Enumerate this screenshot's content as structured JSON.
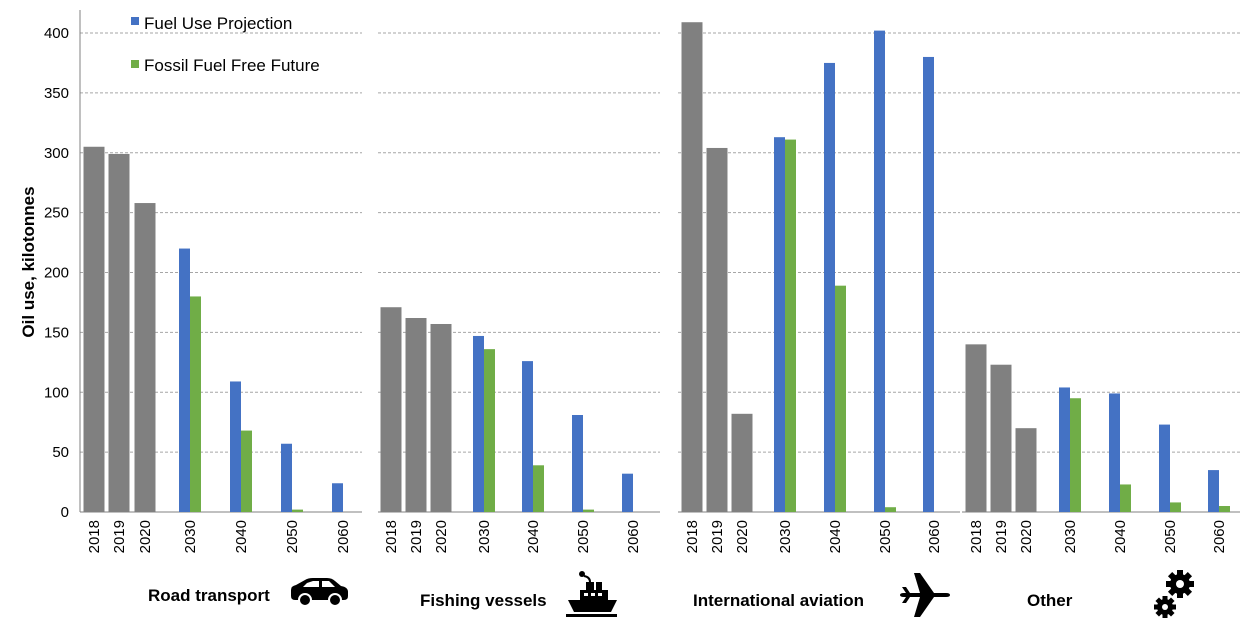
{
  "chart_data": {
    "type": "bar",
    "ylabel": "Oil use, kilotonnes",
    "ylim": [
      0,
      410
    ],
    "yticks": [
      0,
      50,
      100,
      150,
      200,
      250,
      300,
      350,
      400
    ],
    "grid": true,
    "legend_position": "top-left",
    "legend": [
      {
        "name": "Fuel Use Projection",
        "color": "#4472C4"
      },
      {
        "name": "Fossil Fuel Free Future",
        "color": "#70AD47"
      }
    ],
    "historical_color": "#808080",
    "x_categories": [
      "2018",
      "2019",
      "2020",
      "2030",
      "2040",
      "2050",
      "2060"
    ],
    "panels": [
      {
        "label": "Road transport",
        "icon": "car-icon",
        "historical": [
          {
            "x": "2018",
            "value": 305
          },
          {
            "x": "2019",
            "value": 299
          },
          {
            "x": "2020",
            "value": 258
          }
        ],
        "projection": [
          {
            "x": "2030",
            "value": 220
          },
          {
            "x": "2040",
            "value": 109
          },
          {
            "x": "2050",
            "value": 57
          },
          {
            "x": "2060",
            "value": 24
          }
        ],
        "fossil_free": [
          {
            "x": "2030",
            "value": 180
          },
          {
            "x": "2040",
            "value": 68
          },
          {
            "x": "2050",
            "value": 2
          },
          {
            "x": "2060",
            "value": 0
          }
        ]
      },
      {
        "label": "Fishing vessels",
        "icon": "ship-icon",
        "historical": [
          {
            "x": "2018",
            "value": 171
          },
          {
            "x": "2019",
            "value": 162
          },
          {
            "x": "2020",
            "value": 157
          }
        ],
        "projection": [
          {
            "x": "2030",
            "value": 147
          },
          {
            "x": "2040",
            "value": 126
          },
          {
            "x": "2050",
            "value": 81
          },
          {
            "x": "2060",
            "value": 32
          }
        ],
        "fossil_free": [
          {
            "x": "2030",
            "value": 136
          },
          {
            "x": "2040",
            "value": 39
          },
          {
            "x": "2050",
            "value": 2
          },
          {
            "x": "2060",
            "value": 0
          }
        ]
      },
      {
        "label": "International aviation",
        "icon": "airplane-icon",
        "historical": [
          {
            "x": "2018",
            "value": 409
          },
          {
            "x": "2019",
            "value": 304
          },
          {
            "x": "2020",
            "value": 82
          }
        ],
        "projection": [
          {
            "x": "2030",
            "value": 313
          },
          {
            "x": "2040",
            "value": 375
          },
          {
            "x": "2050",
            "value": 402
          },
          {
            "x": "2060",
            "value": 380
          }
        ],
        "fossil_free": [
          {
            "x": "2030",
            "value": 311
          },
          {
            "x": "2040",
            "value": 189
          },
          {
            "x": "2050",
            "value": 4
          },
          {
            "x": "2060",
            "value": 0
          }
        ]
      },
      {
        "label": "Other",
        "icon": "gears-icon",
        "historical": [
          {
            "x": "2018",
            "value": 140
          },
          {
            "x": "2019",
            "value": 123
          },
          {
            "x": "2020",
            "value": 70
          }
        ],
        "projection": [
          {
            "x": "2030",
            "value": 104
          },
          {
            "x": "2040",
            "value": 99
          },
          {
            "x": "2050",
            "value": 73
          },
          {
            "x": "2060",
            "value": 35
          }
        ],
        "fossil_free": [
          {
            "x": "2030",
            "value": 95
          },
          {
            "x": "2040",
            "value": 23
          },
          {
            "x": "2050",
            "value": 8
          },
          {
            "x": "2060",
            "value": 5
          }
        ]
      }
    ]
  }
}
